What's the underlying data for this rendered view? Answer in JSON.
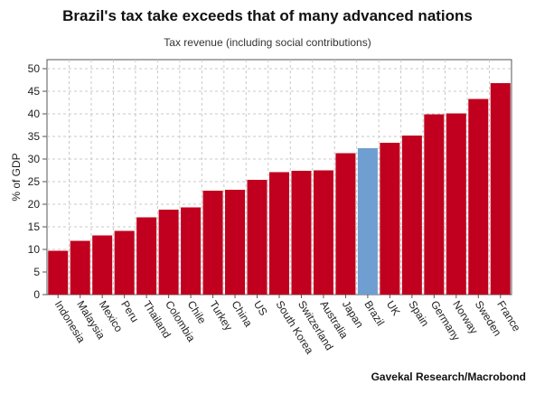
{
  "chart_data": {
    "type": "bar",
    "title": "Brazil's tax take exceeds that of many advanced nations",
    "subtitle": "Tax revenue (including social contributions)",
    "ylabel": "% of GDP",
    "xlabel": "",
    "source": "Gavekal Research/Macrobond",
    "ylim": [
      0,
      52
    ],
    "yticks": [
      0,
      5,
      10,
      15,
      20,
      25,
      30,
      35,
      40,
      45,
      50
    ],
    "grid": true,
    "categories": [
      "Indonesia",
      "Malaysia",
      "Mexico",
      "Peru",
      "Thailand",
      "Colombia",
      "Chile",
      "Turkey",
      "China",
      "US",
      "South Korea",
      "Switzerland",
      "Australia",
      "Japan",
      "Brazil",
      "UK",
      "Spain",
      "Germany",
      "Norway",
      "Sweden",
      "France"
    ],
    "values": [
      9.7,
      11.9,
      13.1,
      14.1,
      17.1,
      18.8,
      19.3,
      23.0,
      23.2,
      25.4,
      27.1,
      27.4,
      27.5,
      31.3,
      32.4,
      33.6,
      35.2,
      39.9,
      40.1,
      43.3,
      46.8
    ],
    "colors": {
      "default": "#c0001e",
      "highlight": "#6f9ed1"
    },
    "highlight": "Brazil"
  }
}
